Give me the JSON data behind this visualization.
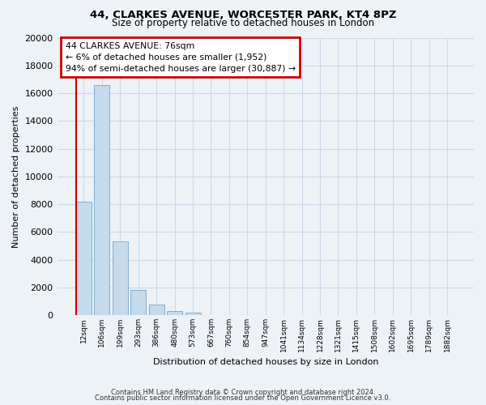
{
  "title1": "44, CLARKES AVENUE, WORCESTER PARK, KT4 8PZ",
  "title2": "Size of property relative to detached houses in London",
  "xlabel": "Distribution of detached houses by size in London",
  "ylabel": "Number of detached properties",
  "bar_labels": [
    "12sqm",
    "106sqm",
    "199sqm",
    "293sqm",
    "386sqm",
    "480sqm",
    "573sqm",
    "667sqm",
    "760sqm",
    "854sqm",
    "947sqm",
    "1041sqm",
    "1134sqm",
    "1228sqm",
    "1321sqm",
    "1415sqm",
    "1508sqm",
    "1602sqm",
    "1695sqm",
    "1789sqm",
    "1882sqm"
  ],
  "bar_values": [
    8200,
    16600,
    5300,
    1850,
    800,
    300,
    200,
    0,
    0,
    0,
    0,
    0,
    0,
    0,
    0,
    0,
    0,
    0,
    0,
    0,
    0
  ],
  "bar_color": "#c5daea",
  "bar_edge_color": "#85aecb",
  "vline_color": "#cc0000",
  "annotation_line1": "44 CLARKES AVENUE: 76sqm",
  "annotation_line2": "← 6% of detached houses are smaller (1,952)",
  "annotation_line3": "94% of semi-detached houses are larger (30,887) →",
  "ylim": [
    0,
    20000
  ],
  "yticks": [
    0,
    2000,
    4000,
    6000,
    8000,
    10000,
    12000,
    14000,
    16000,
    18000,
    20000
  ],
  "footer1": "Contains HM Land Registry data © Crown copyright and database right 2024.",
  "footer2": "Contains public sector information licensed under the Open Government Licence v3.0.",
  "bg_color": "#edf2f7",
  "plot_bg_color": "#edf2f7",
  "grid_color": "#c8d8e8"
}
